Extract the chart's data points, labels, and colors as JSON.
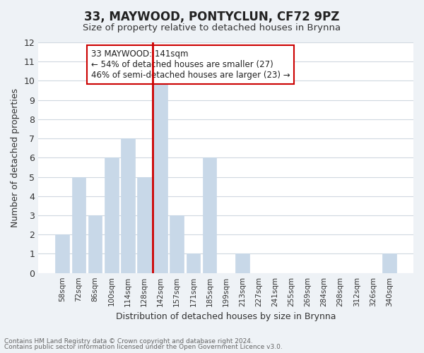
{
  "title": "33, MAYWOOD, PONTYCLUN, CF72 9PZ",
  "subtitle": "Size of property relative to detached houses in Brynna",
  "xlabel": "Distribution of detached houses by size in Brynna",
  "ylabel": "Number of detached properties",
  "bin_labels": [
    "58sqm",
    "72sqm",
    "86sqm",
    "100sqm",
    "114sqm",
    "128sqm",
    "142sqm",
    "157sqm",
    "171sqm",
    "185sqm",
    "199sqm",
    "213sqm",
    "227sqm",
    "241sqm",
    "255sqm",
    "269sqm",
    "284sqm",
    "298sqm",
    "312sqm",
    "326sqm",
    "340sqm"
  ],
  "bin_counts": [
    2,
    5,
    3,
    6,
    7,
    5,
    10,
    3,
    1,
    6,
    0,
    1,
    0,
    0,
    0,
    0,
    0,
    0,
    0,
    0,
    1
  ],
  "highlight_index": 6,
  "bar_color": "#c8d8e8",
  "bar_edge_color": "#c8d8e8",
  "highlight_line_color": "#cc0000",
  "annotation_text": "33 MAYWOOD: 141sqm\n← 54% of detached houses are smaller (27)\n46% of semi-detached houses are larger (23) →",
  "annotation_box_color": "#ffffff",
  "annotation_box_edge_color": "#cc0000",
  "ylim": [
    0,
    12
  ],
  "yticks": [
    0,
    1,
    2,
    3,
    4,
    5,
    6,
    7,
    8,
    9,
    10,
    11,
    12
  ],
  "grid_color": "#d0d8e0",
  "footnote1": "Contains HM Land Registry data © Crown copyright and database right 2024.",
  "footnote2": "Contains public sector information licensed under the Open Government Licence v3.0.",
  "background_color": "#eef2f6",
  "plot_bg_color": "#ffffff"
}
